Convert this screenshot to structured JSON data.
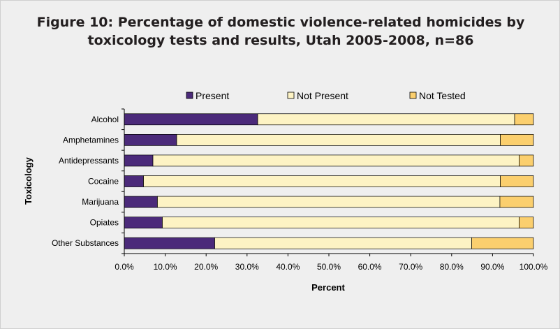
{
  "chart_data": {
    "type": "bar",
    "orientation": "horizontal",
    "stacked": true,
    "title_line1": "Figure 10:  Percentage of domestic violence-related homicides by",
    "title_line2": "toxicology tests and results, Utah 2005-2008, n=86",
    "xlabel": "Percent",
    "ylabel": "Toxicology",
    "xlim": [
      0,
      100
    ],
    "x_ticks": [
      "0.0%",
      "10.0%",
      "20.0%",
      "30.0%",
      "40.0%",
      "50.0%",
      "60.0%",
      "70.0%",
      "80.0%",
      "90.0%",
      "100.0%"
    ],
    "categories": [
      "Alcohol",
      "Amphetamines",
      "Antidepressants",
      "Cocaine",
      "Marijuana",
      "Opiates",
      "Other Substances"
    ],
    "series": [
      {
        "name": "Present",
        "color": "#4b2a7a",
        "values": [
          32.6,
          12.8,
          7.0,
          4.7,
          8.1,
          9.3,
          22.1
        ]
      },
      {
        "name": "Not Present",
        "color": "#fdf3c4",
        "values": [
          62.8,
          79.1,
          89.5,
          87.2,
          83.7,
          87.2,
          62.8
        ]
      },
      {
        "name": "Not Tested",
        "color": "#fbcf6e",
        "values": [
          4.6,
          8.1,
          3.5,
          8.1,
          8.2,
          3.5,
          15.1
        ]
      }
    ],
    "legend_position": "top",
    "grid": false
  }
}
